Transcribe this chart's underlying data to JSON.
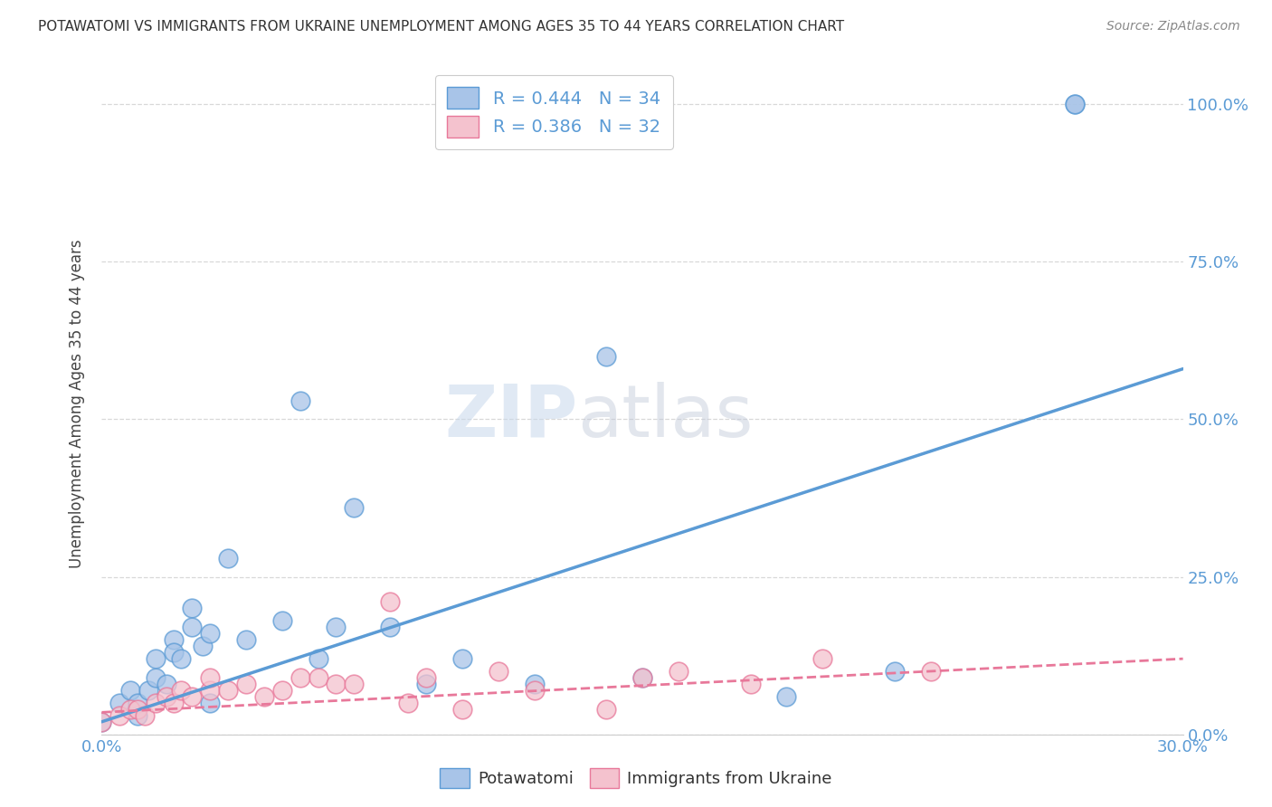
{
  "title": "POTAWATOMI VS IMMIGRANTS FROM UKRAINE UNEMPLOYMENT AMONG AGES 35 TO 44 YEARS CORRELATION CHART",
  "source": "Source: ZipAtlas.com",
  "xlabel_ticks": [
    "0.0%",
    "30.0%"
  ],
  "ylabel_label": "Unemployment Among Ages 35 to 44 years",
  "right_yticks": [
    0.0,
    0.25,
    0.5,
    0.75,
    1.0
  ],
  "right_yticklabels": [
    "0.0%",
    "25.0%",
    "50.0%",
    "75.0%",
    "100.0%"
  ],
  "xlim": [
    0.0,
    0.3
  ],
  "ylim": [
    0.0,
    1.05
  ],
  "blue_R": 0.444,
  "blue_N": 34,
  "pink_R": 0.386,
  "pink_N": 32,
  "blue_color": "#a8c4e8",
  "blue_line_color": "#5b9bd5",
  "pink_color": "#f4c2ce",
  "pink_line_color": "#e8789a",
  "blue_scatter_x": [
    0.0,
    0.005,
    0.008,
    0.01,
    0.01,
    0.013,
    0.015,
    0.015,
    0.018,
    0.02,
    0.02,
    0.022,
    0.025,
    0.025,
    0.028,
    0.03,
    0.03,
    0.035,
    0.04,
    0.05,
    0.055,
    0.06,
    0.065,
    0.07,
    0.08,
    0.09,
    0.1,
    0.12,
    0.14,
    0.15,
    0.19,
    0.22,
    0.27,
    0.27
  ],
  "blue_scatter_y": [
    0.02,
    0.05,
    0.07,
    0.03,
    0.05,
    0.07,
    0.09,
    0.12,
    0.08,
    0.15,
    0.13,
    0.12,
    0.2,
    0.17,
    0.14,
    0.05,
    0.16,
    0.28,
    0.15,
    0.18,
    0.53,
    0.12,
    0.17,
    0.36,
    0.17,
    0.08,
    0.12,
    0.08,
    0.6,
    0.09,
    0.06,
    0.1,
    1.0,
    1.0
  ],
  "pink_scatter_x": [
    0.0,
    0.005,
    0.008,
    0.01,
    0.012,
    0.015,
    0.018,
    0.02,
    0.022,
    0.025,
    0.03,
    0.03,
    0.035,
    0.04,
    0.045,
    0.05,
    0.055,
    0.06,
    0.065,
    0.07,
    0.08,
    0.085,
    0.09,
    0.1,
    0.11,
    0.12,
    0.14,
    0.15,
    0.16,
    0.18,
    0.2,
    0.23
  ],
  "pink_scatter_y": [
    0.02,
    0.03,
    0.04,
    0.04,
    0.03,
    0.05,
    0.06,
    0.05,
    0.07,
    0.06,
    0.07,
    0.09,
    0.07,
    0.08,
    0.06,
    0.07,
    0.09,
    0.09,
    0.08,
    0.08,
    0.21,
    0.05,
    0.09,
    0.04,
    0.1,
    0.07,
    0.04,
    0.09,
    0.1,
    0.08,
    0.12,
    0.1
  ],
  "blue_trendline_x": [
    0.0,
    0.3
  ],
  "blue_trendline_y": [
    0.02,
    0.58
  ],
  "pink_trendline_x": [
    0.0,
    0.3
  ],
  "pink_trendline_y": [
    0.035,
    0.12
  ],
  "watermark_zip": "ZIP",
  "watermark_atlas": "atlas",
  "background_color": "#ffffff",
  "grid_color": "#d8d8d8"
}
